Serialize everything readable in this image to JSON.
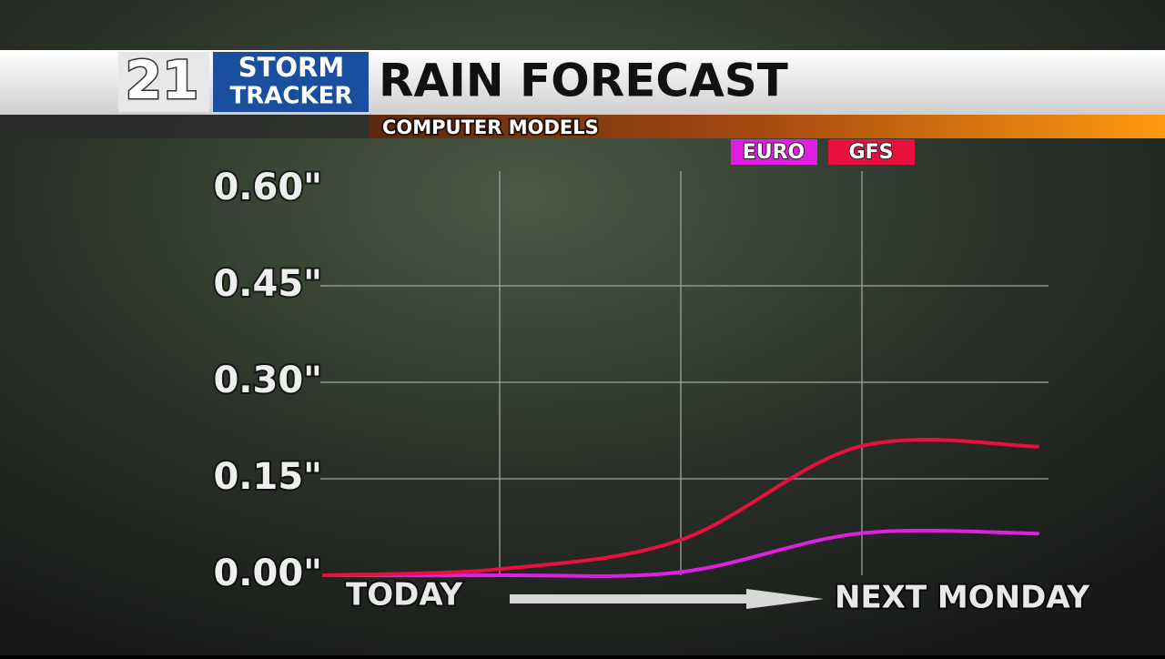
{
  "logo": {
    "number": "21",
    "line1": "STORM",
    "line2": "TRACKER"
  },
  "chart_data": {
    "type": "line",
    "title": "RAIN FORECAST",
    "subtitle": "COMPUTER MODELS",
    "x_label_start": "TODAY",
    "x_label_end": "NEXT MONDAY",
    "categories": [
      null,
      null,
      null,
      null,
      null
    ],
    "series": [
      {
        "name": "EURO",
        "color": "#e020e0",
        "values": [
          0.0,
          0.0,
          0.005,
          0.065,
          0.065
        ]
      },
      {
        "name": "GFS",
        "color": "#e8103f",
        "values": [
          0.0,
          0.01,
          0.055,
          0.2,
          0.2
        ]
      }
    ],
    "ylim": [
      0,
      0.6
    ],
    "yticks": [
      {
        "value": 0,
        "label": "0.00\""
      },
      {
        "value": 0.15,
        "label": "0.15\""
      },
      {
        "value": 0.3,
        "label": "0.30\""
      },
      {
        "value": 0.45,
        "label": "0.45\""
      },
      {
        "value": 0.6,
        "label": "0.60\""
      }
    ],
    "grid": true
  }
}
